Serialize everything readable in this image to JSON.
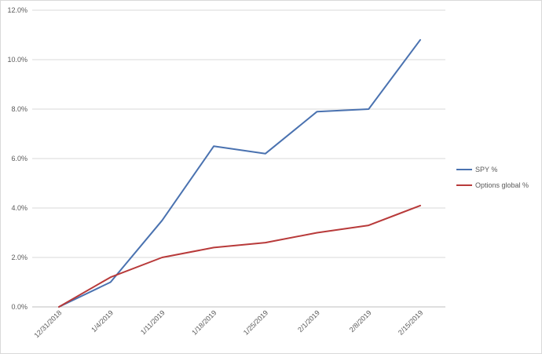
{
  "chart_data": {
    "type": "line",
    "title": "",
    "xlabel": "",
    "ylabel": "",
    "categories": [
      "12/31/2018",
      "1/4/2019",
      "1/11/2019",
      "1/18/2019",
      "1/25/2019",
      "2/1/2019",
      "2/8/2019",
      "2/15/2019"
    ],
    "y_ticks": [
      "0.0%",
      "2.0%",
      "4.0%",
      "6.0%",
      "8.0%",
      "10.0%",
      "12.0%"
    ],
    "ylim": [
      0,
      12
    ],
    "y_unit": "%",
    "grid": "horizontal",
    "legend_position": "right",
    "series": [
      {
        "name": "SPY %",
        "color": "#4a72b0",
        "points": [
          {
            "x": "12/31/2018",
            "y": 0.0
          },
          {
            "x": "1/4/2019",
            "y": 1.0
          },
          {
            "x": "1/11/2019",
            "y": 3.5
          },
          {
            "x": "1/18/2019",
            "y": 6.5
          },
          {
            "x": "1/25/2019",
            "y": 6.2
          },
          {
            "x": "2/1/2019",
            "y": 7.9
          },
          {
            "x": "2/8/2019",
            "y": 8.0
          },
          {
            "x": "2/15/2019",
            "y": 10.8
          }
        ]
      },
      {
        "name": "Options global %",
        "color": "#b83a3a",
        "points": [
          {
            "x": "12/31/2018",
            "y": 0.0
          },
          {
            "x": "1/4/2019",
            "y": 1.2
          },
          {
            "x": "1/11/2019",
            "y": 2.0
          },
          {
            "x": "1/18/2019",
            "y": 2.4
          },
          {
            "x": "1/25/2019",
            "y": 2.6
          },
          {
            "x": "2/1/2019",
            "y": 3.0
          },
          {
            "x": "2/8/2019",
            "y": 3.3
          },
          {
            "x": "2/15/2019",
            "y": 4.1
          }
        ]
      }
    ]
  }
}
